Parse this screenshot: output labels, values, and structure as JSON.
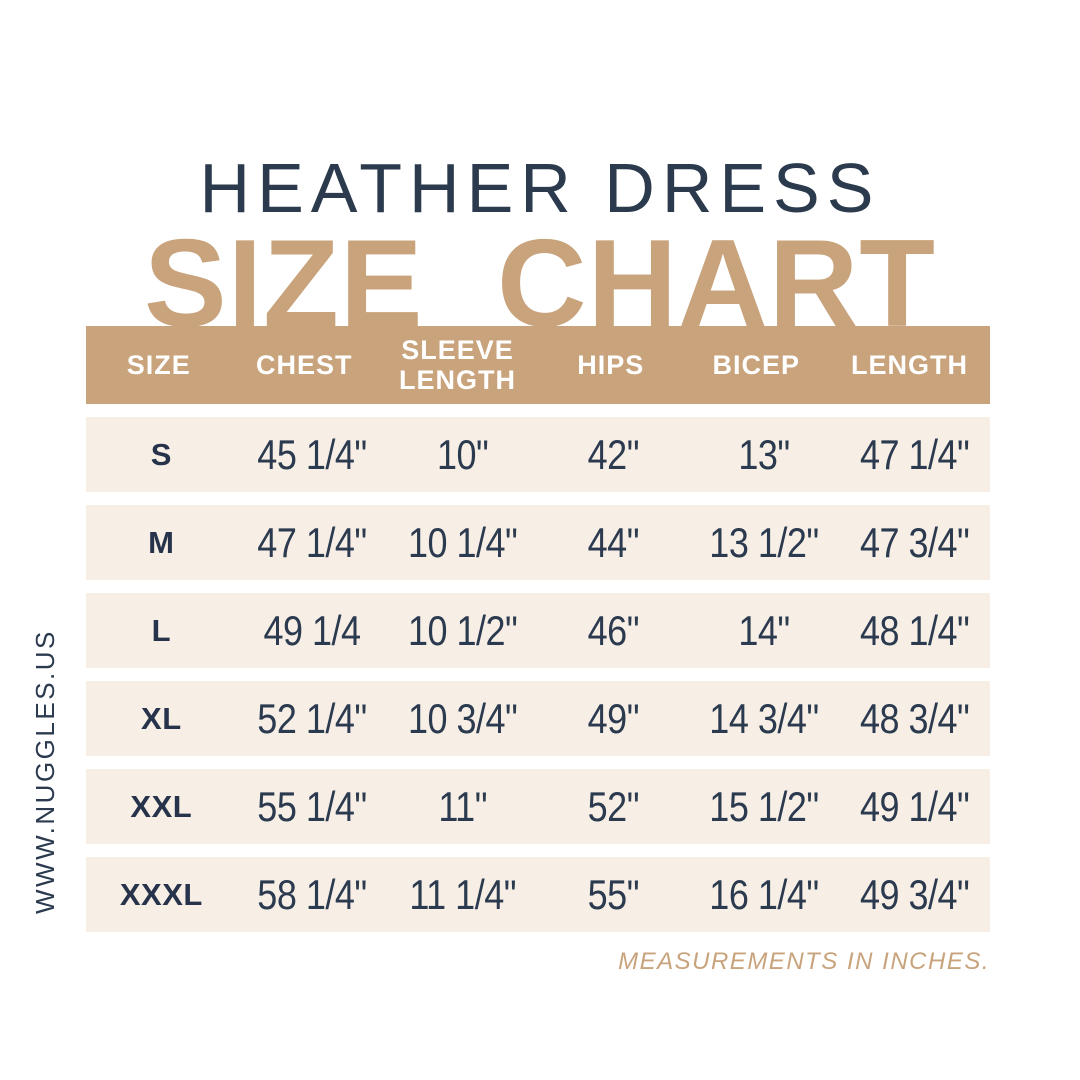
{
  "page": {
    "product_title": "HEATHER DRESS",
    "chart_title": "SIZE CHART",
    "footnote": "MEASUREMENTS IN INCHES.",
    "website": "WWW.NUGGLES.US"
  },
  "colors": {
    "tan_accent": "#c8a37c",
    "row_cream": "#f7efe6",
    "navy_text": "#2b3a4e",
    "header_text": "#ffffff",
    "background": "#ffffff"
  },
  "chart_data": {
    "type": "table",
    "title": "HEATHER DRESS SIZE CHART",
    "units": "inches",
    "columns": [
      "SIZE",
      "CHEST",
      "SLEEVE LENGTH",
      "HIPS",
      "BICEP",
      "LENGTH"
    ],
    "rows": [
      [
        "S",
        "45 1/4\"",
        "10\"",
        "42\"",
        "13\"",
        "47 1/4\""
      ],
      [
        "M",
        "47 1/4\"",
        "10 1/4\"",
        "44\"",
        "13 1/2\"",
        "47 3/4\""
      ],
      [
        "L",
        "49 1/4",
        "10 1/2\"",
        "46\"",
        "14\"",
        "48 1/4\""
      ],
      [
        "XL",
        "52 1/4\"",
        "10 3/4\"",
        "49\"",
        "14 3/4\"",
        "48 3/4\""
      ],
      [
        "XXL",
        "55 1/4\"",
        "11\"",
        "52\"",
        "15 1/2\"",
        "49 1/4\""
      ],
      [
        "XXXL",
        "58 1/4\"",
        "11 1/4\"",
        "55\"",
        "16 1/4\"",
        "49 3/4\""
      ]
    ]
  }
}
